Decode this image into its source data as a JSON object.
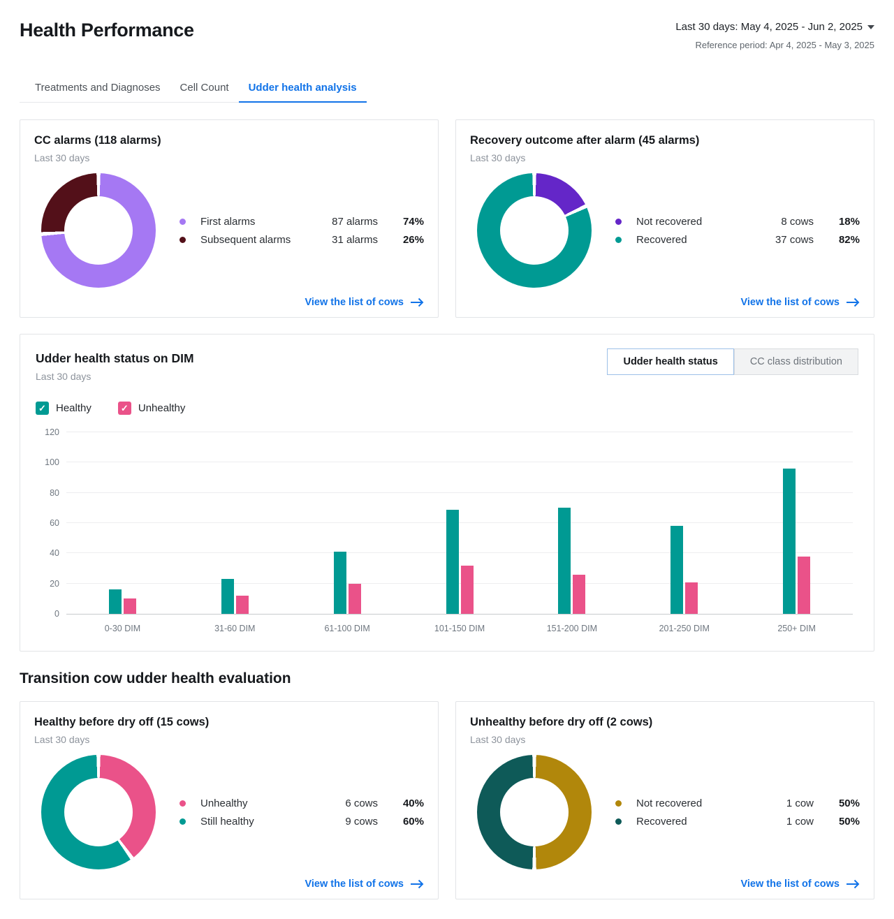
{
  "header": {
    "title": "Health Performance",
    "date_range": "Last 30 days: May 4, 2025 - Jun 2, 2025",
    "reference_period": "Reference period: Apr 4, 2025 - May 3, 2025"
  },
  "tabs": {
    "items": [
      {
        "label": "Treatments and Diagnoses",
        "active": false
      },
      {
        "label": "Cell Count",
        "active": false
      },
      {
        "label": "Udder health analysis",
        "active": true
      }
    ]
  },
  "toggle": {
    "items": [
      {
        "label": "Udder health status",
        "active": true
      },
      {
        "label": "CC class distribution",
        "active": false
      }
    ]
  },
  "view_link_label": "View the list of cows",
  "section_heading": "Transition cow udder health evaluation",
  "colors": {
    "accent_blue": "#1173e8",
    "teal": "#009a93",
    "pink": "#ea5289",
    "light_purple": "#a578f3",
    "dark_maroon": "#531019",
    "violet": "#6426c8",
    "gold": "#b1870b",
    "dark_teal": "#0e5a58"
  },
  "chart_data": [
    {
      "id": "cc-alarms",
      "type": "pie",
      "donut": true,
      "title": "CC alarms (118 alarms)",
      "subtitle": "Last 30 days",
      "slices": [
        {
          "label": "First alarms",
          "value": 87,
          "value_label": "87 alarms",
          "pct": 74,
          "pct_label": "74%",
          "color": "#a578f3"
        },
        {
          "label": "Subsequent alarms",
          "value": 31,
          "value_label": "31 alarms",
          "pct": 26,
          "pct_label": "26%",
          "color": "#531019"
        }
      ]
    },
    {
      "id": "recovery-outcome-after-alarm",
      "type": "pie",
      "donut": true,
      "title": "Recovery outcome after alarm (45 alarms)",
      "subtitle": "Last 30 days",
      "slices": [
        {
          "label": "Not recovered",
          "value": 8,
          "value_label": "8 cows",
          "pct": 18,
          "pct_label": "18%",
          "color": "#6426c8"
        },
        {
          "label": "Recovered",
          "value": 37,
          "value_label": "37 cows",
          "pct": 82,
          "pct_label": "82%",
          "color": "#009a93"
        }
      ]
    },
    {
      "id": "udder-health-status-on-dim",
      "type": "bar",
      "title": "Udder health status on DIM",
      "subtitle": "Last 30 days",
      "categories": [
        "0-30 DIM",
        "31-60 DIM",
        "61-100 DIM",
        "101-150 DIM",
        "151-200 DIM",
        "201-250 DIM",
        "250+ DIM"
      ],
      "series": [
        {
          "name": "Healthy",
          "color": "#009a93",
          "values": [
            16,
            23,
            41,
            69,
            70,
            58,
            96
          ]
        },
        {
          "name": "Unhealthy",
          "color": "#ea5289",
          "values": [
            10,
            12,
            20,
            32,
            26,
            21,
            38
          ]
        }
      ],
      "ylim": [
        0,
        120
      ],
      "yticks": [
        0,
        20,
        40,
        60,
        80,
        100,
        120
      ],
      "grid": true,
      "legend_position": "top-left"
    },
    {
      "id": "healthy-before-dry-off",
      "type": "pie",
      "donut": true,
      "title": "Healthy before dry off (15 cows)",
      "subtitle": "Last 30 days",
      "slices": [
        {
          "label": "Unhealthy",
          "value": 6,
          "value_label": "6 cows",
          "pct": 40,
          "pct_label": "40%",
          "color": "#ea5289"
        },
        {
          "label": "Still healthy",
          "value": 9,
          "value_label": "9 cows",
          "pct": 60,
          "pct_label": "60%",
          "color": "#009a93"
        }
      ]
    },
    {
      "id": "unhealthy-before-dry-off",
      "type": "pie",
      "donut": true,
      "title": "Unhealthy before dry off (2 cows)",
      "subtitle": "Last 30 days",
      "slices": [
        {
          "label": "Not recovered",
          "value": 1,
          "value_label": "1 cow",
          "pct": 50,
          "pct_label": "50%",
          "color": "#b1870b"
        },
        {
          "label": "Recovered",
          "value": 1,
          "value_label": "1 cow",
          "pct": 50,
          "pct_label": "50%",
          "color": "#0e5a58"
        }
      ]
    }
  ]
}
